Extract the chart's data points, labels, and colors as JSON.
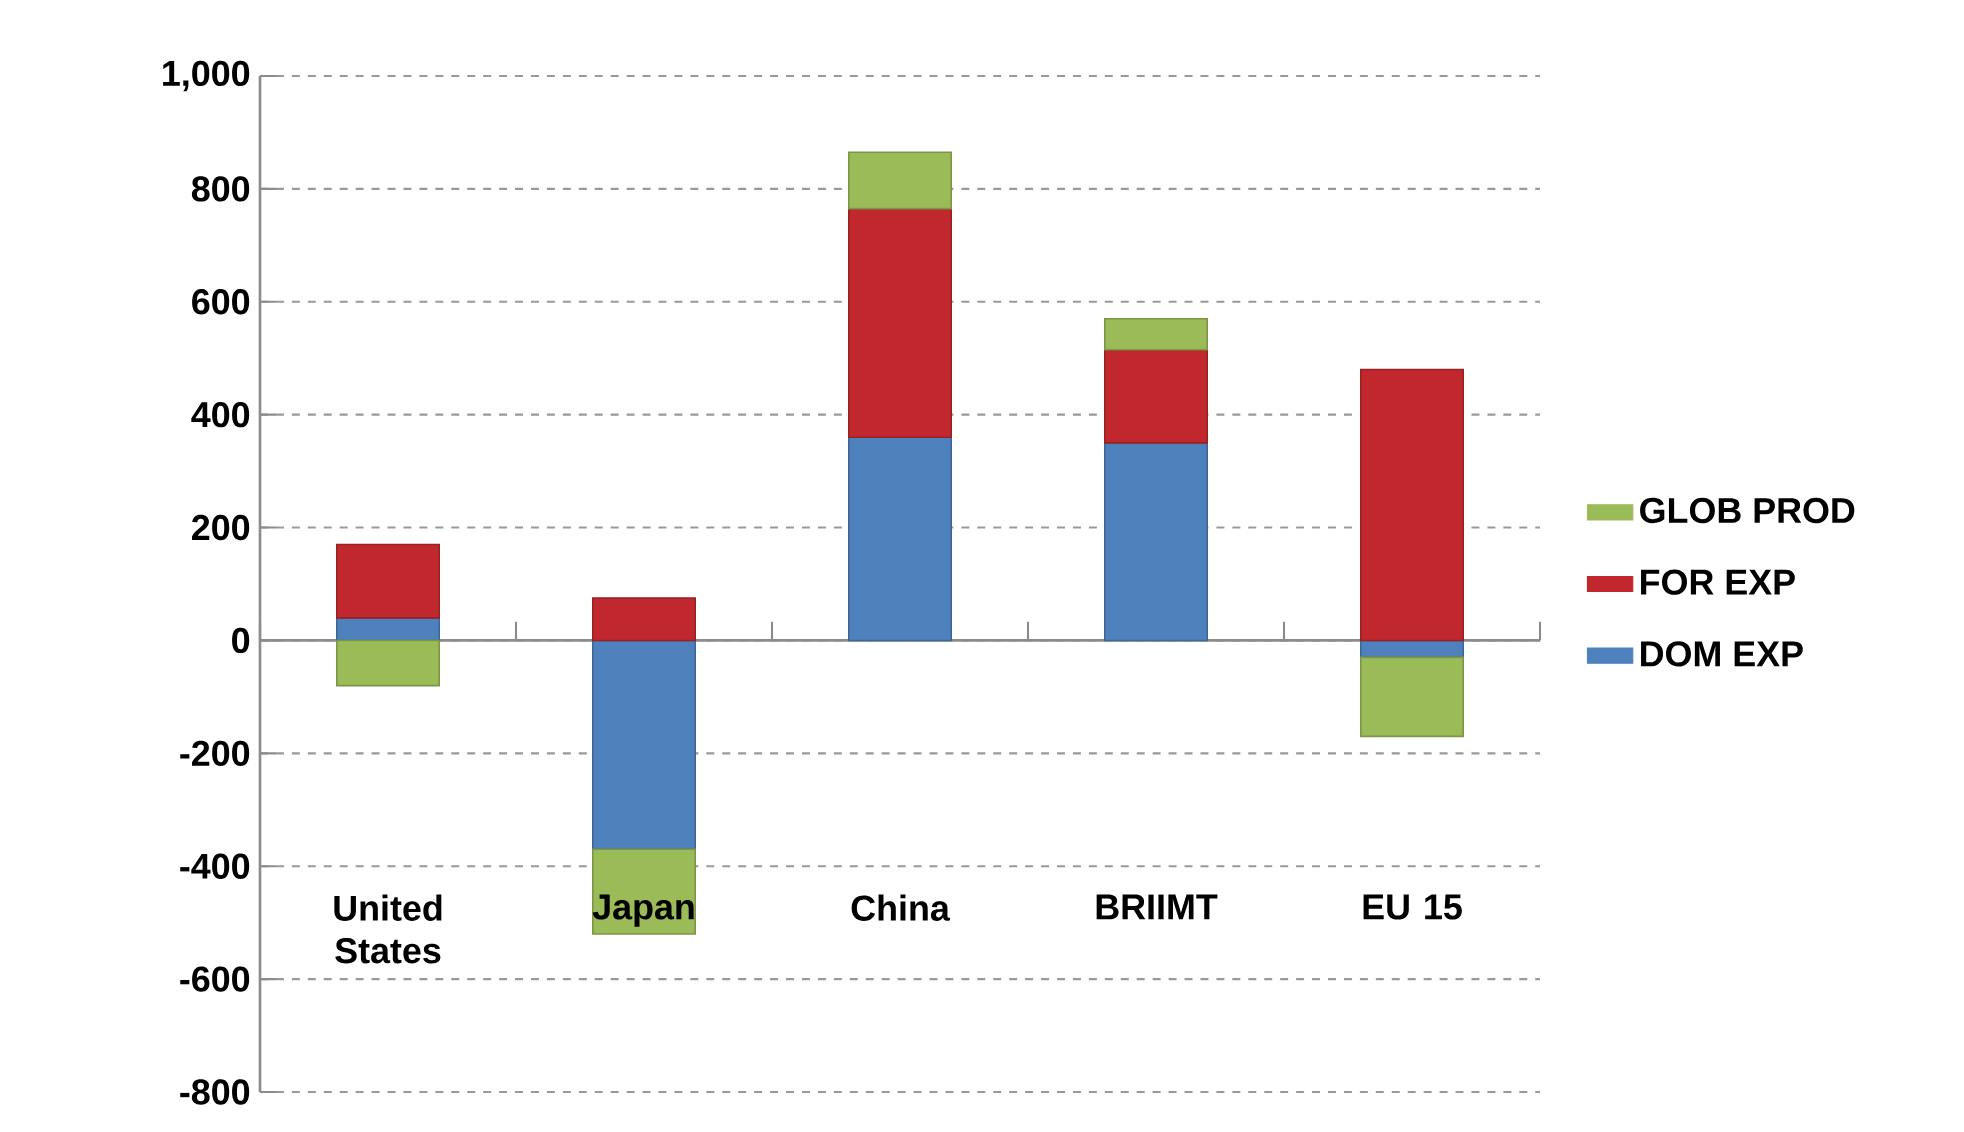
{
  "chart_data": {
    "type": "bar",
    "stacked": true,
    "categories": [
      "United States",
      "Japan",
      "China",
      "BRIIMT",
      "EU 15"
    ],
    "series": [
      {
        "name": "DOM EXP",
        "color": "#4f81bd",
        "values": [
          40,
          -370,
          360,
          350,
          -30
        ]
      },
      {
        "name": "FOR EXP",
        "color": "#c0282d",
        "values": [
          130,
          75,
          405,
          165,
          480
        ]
      },
      {
        "name": "GLOB PROD",
        "color": "#9bbb59",
        "values": [
          -80,
          -150,
          100,
          55,
          -140
        ]
      }
    ],
    "ylim": [
      -800,
      1000
    ],
    "yticks": [
      -800,
      -600,
      -400,
      -200,
      0,
      200,
      400,
      600,
      800,
      {
        "value": 1000,
        "label": "1,000"
      }
    ],
    "grid": "y",
    "legend": "right"
  }
}
